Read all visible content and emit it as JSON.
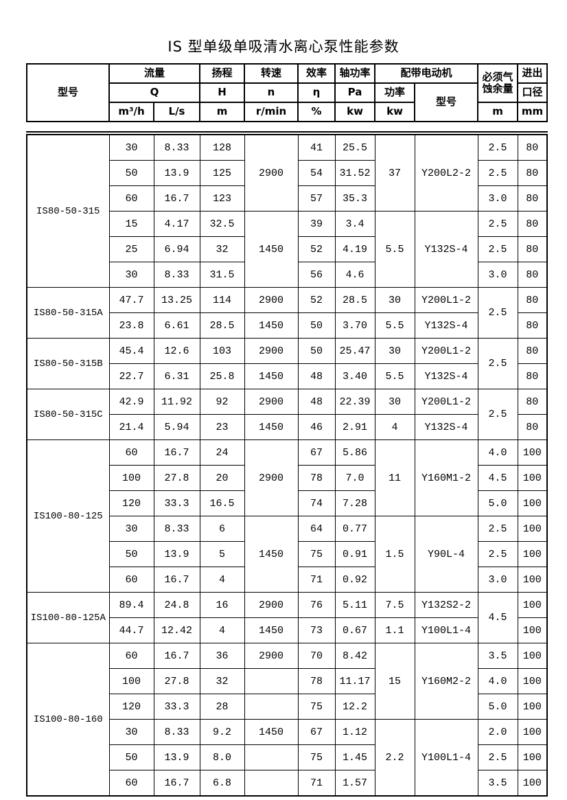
{
  "title": "IS 型单级单吸清水离心泵性能参数",
  "colors": {
    "text": "#000000",
    "border": "#000000",
    "background": "#ffffff"
  },
  "header": {
    "model": "型号",
    "flow_group": "流量",
    "flow_symbol": "Q",
    "flow_unit_m3h": "m³/h",
    "flow_unit_ls": "L/s",
    "head_group": "扬程",
    "head_symbol": "H",
    "head_unit": "m",
    "speed_group": "转速",
    "speed_symbol": "n",
    "speed_unit": "r/min",
    "efficiency_group": "效率",
    "efficiency_symbol": "η",
    "efficiency_unit": "%",
    "shaft_power_group": "轴功率",
    "shaft_power_symbol": "Pa",
    "shaft_power_unit": "kw",
    "motor_group": "配带电动机",
    "motor_power_label": "功率",
    "motor_power_unit": "kw",
    "motor_model_label": "型号",
    "npsh_line1": "必须气",
    "npsh_line2": "蚀余量",
    "npsh_unit": "m",
    "port_line1": "进出",
    "port_line2": "口径",
    "port_unit": "mm"
  },
  "table": {
    "rows": [
      [
        {
          "t": "IS80-50-315",
          "rs": 6,
          "cls": "model"
        },
        {
          "t": "30"
        },
        {
          "t": "8.33"
        },
        {
          "t": "128"
        },
        {
          "t": "2900",
          "rs": 3
        },
        {
          "t": "41"
        },
        {
          "t": "25.5"
        },
        {
          "t": "37",
          "rs": 3
        },
        {
          "t": "Y200L2-2",
          "rs": 3
        },
        {
          "t": "2.5"
        },
        {
          "t": "80"
        }
      ],
      [
        {
          "t": "50"
        },
        {
          "t": "13.9"
        },
        {
          "t": "125"
        },
        {
          "t": "54"
        },
        {
          "t": "31.52"
        },
        {
          "t": "2.5"
        },
        {
          "t": "80"
        }
      ],
      [
        {
          "t": "60"
        },
        {
          "t": "16.7"
        },
        {
          "t": "123"
        },
        {
          "t": "57"
        },
        {
          "t": "35.3"
        },
        {
          "t": "3.0"
        },
        {
          "t": "80"
        }
      ],
      [
        {
          "t": "15"
        },
        {
          "t": "4.17"
        },
        {
          "t": "32.5"
        },
        {
          "t": "1450",
          "rs": 3
        },
        {
          "t": "39"
        },
        {
          "t": "3.4"
        },
        {
          "t": "5.5",
          "rs": 3
        },
        {
          "t": "Y132S-4",
          "rs": 3
        },
        {
          "t": "2.5"
        },
        {
          "t": "80"
        }
      ],
      [
        {
          "t": "25"
        },
        {
          "t": "6.94"
        },
        {
          "t": "32"
        },
        {
          "t": "52"
        },
        {
          "t": "4.19"
        },
        {
          "t": "2.5"
        },
        {
          "t": "80"
        }
      ],
      [
        {
          "t": "30"
        },
        {
          "t": "8.33"
        },
        {
          "t": "31.5"
        },
        {
          "t": "56"
        },
        {
          "t": "4.6"
        },
        {
          "t": "3.0"
        },
        {
          "t": "80"
        }
      ],
      [
        {
          "t": "IS80-50-315A",
          "rs": 2,
          "cls": "model"
        },
        {
          "t": "47.7"
        },
        {
          "t": "13.25"
        },
        {
          "t": "114"
        },
        {
          "t": "2900"
        },
        {
          "t": "52"
        },
        {
          "t": "28.5"
        },
        {
          "t": "30"
        },
        {
          "t": "Y200L1-2"
        },
        {
          "t": "2.5",
          "rs": 2
        },
        {
          "t": "80"
        }
      ],
      [
        {
          "t": "23.8"
        },
        {
          "t": "6.61"
        },
        {
          "t": "28.5"
        },
        {
          "t": "1450"
        },
        {
          "t": "50"
        },
        {
          "t": "3.70"
        },
        {
          "t": "5.5"
        },
        {
          "t": "Y132S-4"
        },
        {
          "t": "80"
        }
      ],
      [
        {
          "t": "IS80-50-315B",
          "rs": 2,
          "cls": "model"
        },
        {
          "t": "45.4"
        },
        {
          "t": "12.6"
        },
        {
          "t": "103"
        },
        {
          "t": "2900"
        },
        {
          "t": "50"
        },
        {
          "t": "25.47"
        },
        {
          "t": "30"
        },
        {
          "t": "Y200L1-2"
        },
        {
          "t": "2.5",
          "rs": 2
        },
        {
          "t": "80"
        }
      ],
      [
        {
          "t": "22.7"
        },
        {
          "t": "6.31"
        },
        {
          "t": "25.8"
        },
        {
          "t": "1450"
        },
        {
          "t": "48"
        },
        {
          "t": "3.40"
        },
        {
          "t": "5.5"
        },
        {
          "t": "Y132S-4"
        },
        {
          "t": "80"
        }
      ],
      [
        {
          "t": "IS80-50-315C",
          "rs": 2,
          "cls": "model"
        },
        {
          "t": "42.9"
        },
        {
          "t": "11.92"
        },
        {
          "t": "92"
        },
        {
          "t": "2900"
        },
        {
          "t": "48"
        },
        {
          "t": "22.39"
        },
        {
          "t": "30"
        },
        {
          "t": "Y200L1-2"
        },
        {
          "t": "2.5",
          "rs": 2
        },
        {
          "t": "80"
        }
      ],
      [
        {
          "t": "21.4"
        },
        {
          "t": "5.94"
        },
        {
          "t": "23"
        },
        {
          "t": "1450"
        },
        {
          "t": "46"
        },
        {
          "t": "2.91"
        },
        {
          "t": "4"
        },
        {
          "t": "Y132S-4"
        },
        {
          "t": "80"
        }
      ],
      [
        {
          "t": "IS100-80-125",
          "rs": 6,
          "cls": "model"
        },
        {
          "t": "60"
        },
        {
          "t": "16.7"
        },
        {
          "t": "24"
        },
        {
          "t": "2900",
          "rs": 3
        },
        {
          "t": "67"
        },
        {
          "t": "5.86"
        },
        {
          "t": "11",
          "rs": 3
        },
        {
          "t": "Y160M1-2",
          "rs": 3
        },
        {
          "t": "4.0"
        },
        {
          "t": "100"
        }
      ],
      [
        {
          "t": "100"
        },
        {
          "t": "27.8"
        },
        {
          "t": "20"
        },
        {
          "t": "78"
        },
        {
          "t": "7.0"
        },
        {
          "t": "4.5"
        },
        {
          "t": "100"
        }
      ],
      [
        {
          "t": "120"
        },
        {
          "t": "33.3"
        },
        {
          "t": "16.5"
        },
        {
          "t": "74"
        },
        {
          "t": "7.28"
        },
        {
          "t": "5.0"
        },
        {
          "t": "100"
        }
      ],
      [
        {
          "t": "30"
        },
        {
          "t": "8.33"
        },
        {
          "t": "6"
        },
        {
          "t": "1450",
          "rs": 3
        },
        {
          "t": "64"
        },
        {
          "t": "0.77"
        },
        {
          "t": "1.5",
          "rs": 3
        },
        {
          "t": "Y90L-4",
          "rs": 3
        },
        {
          "t": "2.5"
        },
        {
          "t": "100"
        }
      ],
      [
        {
          "t": "50"
        },
        {
          "t": "13.9"
        },
        {
          "t": "5"
        },
        {
          "t": "75"
        },
        {
          "t": "0.91"
        },
        {
          "t": "2.5"
        },
        {
          "t": "100"
        }
      ],
      [
        {
          "t": "60"
        },
        {
          "t": "16.7"
        },
        {
          "t": "4"
        },
        {
          "t": "71"
        },
        {
          "t": "0.92"
        },
        {
          "t": "3.0"
        },
        {
          "t": "100"
        }
      ],
      [
        {
          "t": "IS100-80-125A",
          "rs": 2,
          "cls": "model"
        },
        {
          "t": "89.4"
        },
        {
          "t": "24.8"
        },
        {
          "t": "16"
        },
        {
          "t": "2900"
        },
        {
          "t": "76"
        },
        {
          "t": "5.11"
        },
        {
          "t": "7.5"
        },
        {
          "t": "Y132S2-2"
        },
        {
          "t": "4.5",
          "rs": 2
        },
        {
          "t": "100"
        }
      ],
      [
        {
          "t": "44.7"
        },
        {
          "t": "12.42"
        },
        {
          "t": "4"
        },
        {
          "t": "1450"
        },
        {
          "t": "73"
        },
        {
          "t": "0.67"
        },
        {
          "t": "1.1"
        },
        {
          "t": "Y100L1-4"
        },
        {
          "t": "100"
        }
      ],
      [
        {
          "t": "IS100-80-160",
          "rs": 6,
          "cls": "model"
        },
        {
          "t": "60"
        },
        {
          "t": "16.7"
        },
        {
          "t": "36"
        },
        {
          "t": "2900"
        },
        {
          "t": "70"
        },
        {
          "t": "8.42"
        },
        {
          "t": "15",
          "rs": 3
        },
        {
          "t": "Y160M2-2",
          "rs": 3
        },
        {
          "t": "3.5"
        },
        {
          "t": "100"
        }
      ],
      [
        {
          "t": "100"
        },
        {
          "t": "27.8"
        },
        {
          "t": "32"
        },
        {
          "t": ""
        },
        {
          "t": "78"
        },
        {
          "t": "11.17"
        },
        {
          "t": "4.0"
        },
        {
          "t": "100"
        }
      ],
      [
        {
          "t": "120"
        },
        {
          "t": "33.3"
        },
        {
          "t": "28"
        },
        {
          "t": ""
        },
        {
          "t": "75"
        },
        {
          "t": "12.2"
        },
        {
          "t": "5.0"
        },
        {
          "t": "100"
        }
      ],
      [
        {
          "t": "30"
        },
        {
          "t": "8.33"
        },
        {
          "t": "9.2"
        },
        {
          "t": "1450"
        },
        {
          "t": "67"
        },
        {
          "t": "1.12"
        },
        {
          "t": "2.2",
          "rs": 3
        },
        {
          "t": "Y100L1-4",
          "rs": 3
        },
        {
          "t": "2.0"
        },
        {
          "t": "100"
        }
      ],
      [
        {
          "t": "50"
        },
        {
          "t": "13.9"
        },
        {
          "t": "8.0"
        },
        {
          "t": ""
        },
        {
          "t": "75"
        },
        {
          "t": "1.45"
        },
        {
          "t": "2.5"
        },
        {
          "t": "100"
        }
      ],
      [
        {
          "t": "60"
        },
        {
          "t": "16.7"
        },
        {
          "t": "6.8"
        },
        {
          "t": ""
        },
        {
          "t": "71"
        },
        {
          "t": "1.57"
        },
        {
          "t": "3.5"
        },
        {
          "t": "100"
        }
      ]
    ]
  }
}
